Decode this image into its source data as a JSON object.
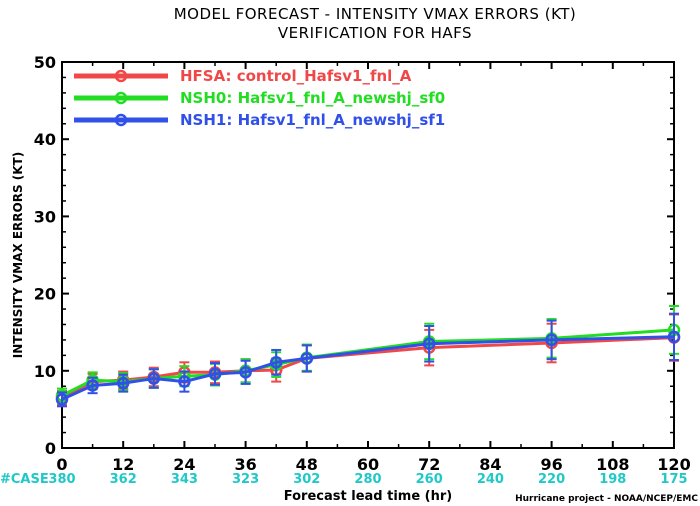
{
  "chart_data": {
    "type": "line",
    "title": "MODEL FORECAST - INTENSITY VMAX ERRORS (KT)",
    "subtitle": "VERIFICATION FOR HAFS",
    "xlabel": "Forecast lead time (hr)",
    "ylabel": "INTENSITY VMAX ERRORS (KT)",
    "xlim": [
      0,
      120
    ],
    "ylim": [
      0,
      50
    ],
    "x_ticks": [
      0,
      12,
      24,
      36,
      48,
      60,
      72,
      84,
      96,
      108,
      120
    ],
    "y_ticks": [
      0,
      10,
      20,
      30,
      40,
      50
    ],
    "grid": false,
    "legend_position": "top-left",
    "case_label": "#CASE",
    "case_counts": [
      {
        "x": 0,
        "n": "380"
      },
      {
        "x": 12,
        "n": "362"
      },
      {
        "x": 24,
        "n": "343"
      },
      {
        "x": 36,
        "n": "323"
      },
      {
        "x": 48,
        "n": "302"
      },
      {
        "x": 60,
        "n": "280"
      },
      {
        "x": 72,
        "n": "260"
      },
      {
        "x": 84,
        "n": "240"
      },
      {
        "x": 96,
        "n": "220"
      },
      {
        "x": 108,
        "n": "198"
      },
      {
        "x": 120,
        "n": "175"
      }
    ],
    "credit": "Hurricane project - NOAA/NCEP/EMC",
    "series": [
      {
        "name": "HFSA: control_Hafsv1_fnl_A",
        "color": "#f04848",
        "x": [
          0,
          6,
          12,
          18,
          24,
          30,
          36,
          42,
          48,
          72,
          96,
          120
        ],
        "y": [
          6.5,
          8.6,
          8.8,
          9.2,
          9.8,
          9.8,
          10.0,
          10.1,
          11.6,
          13.0,
          13.6,
          14.3
        ],
        "err": [
          0.9,
          1.0,
          1.1,
          1.2,
          1.3,
          1.4,
          1.5,
          1.5,
          1.7,
          2.3,
          2.5,
          3.0
        ]
      },
      {
        "name": "NSH0: Hafsv1_fnl_A_newshj_sf0",
        "color": "#22dd22",
        "x": [
          0,
          6,
          12,
          18,
          24,
          30,
          36,
          42,
          48,
          72,
          96,
          120
        ],
        "y": [
          6.8,
          8.8,
          8.6,
          9.0,
          9.3,
          9.5,
          10.0,
          10.8,
          11.7,
          13.8,
          14.2,
          15.3
        ],
        "err": [
          0.9,
          1.0,
          1.1,
          1.2,
          1.3,
          1.4,
          1.5,
          1.6,
          1.7,
          2.3,
          2.5,
          3.1
        ]
      },
      {
        "name": "NSH1: Hafsv1_fnl_A_newshj_sf1",
        "color": "#3050e8",
        "x": [
          0,
          6,
          12,
          18,
          24,
          30,
          36,
          42,
          48,
          72,
          96,
          120
        ],
        "y": [
          6.3,
          8.1,
          8.4,
          9.0,
          8.6,
          9.6,
          9.8,
          11.1,
          11.6,
          13.5,
          14.0,
          14.4
        ],
        "err": [
          0.9,
          1.0,
          1.1,
          1.2,
          1.3,
          1.4,
          1.5,
          1.6,
          1.7,
          2.3,
          2.5,
          3.0
        ]
      }
    ]
  }
}
